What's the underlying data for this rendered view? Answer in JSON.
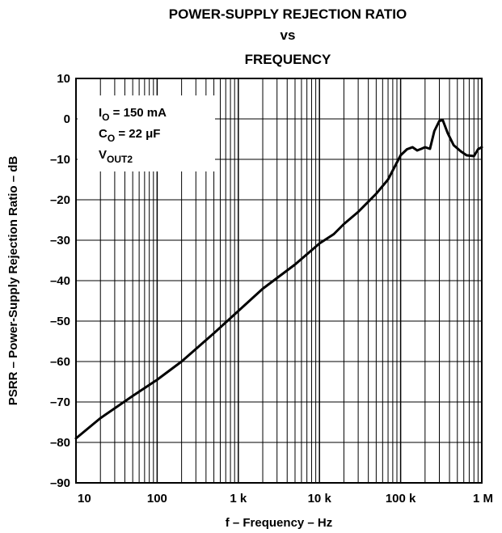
{
  "chart_data": {
    "type": "line",
    "title": [
      "POWER-SUPPLY REJECTION RATIO",
      "vs",
      "FREQUENCY"
    ],
    "xlabel": "f – Frequency – Hz",
    "ylabel": "PSRR – Power-Supply Rejection Ratio – dB",
    "x_scale": "log",
    "xlim": [
      10,
      1000000
    ],
    "ylim": [
      -90,
      10
    ],
    "x_ticks": [
      {
        "value": 10,
        "label": "10"
      },
      {
        "value": 100,
        "label": "100"
      },
      {
        "value": 1000,
        "label": "1 k"
      },
      {
        "value": 10000,
        "label": "10 k"
      },
      {
        "value": 100000,
        "label": "100 k"
      },
      {
        "value": 1000000,
        "label": "1 M"
      }
    ],
    "y_ticks": [
      {
        "value": 10,
        "label": "10"
      },
      {
        "value": 0,
        "label": "0"
      },
      {
        "value": -10,
        "label": "–10"
      },
      {
        "value": -20,
        "label": "–20"
      },
      {
        "value": -30,
        "label": "–30"
      },
      {
        "value": -40,
        "label": "–40"
      },
      {
        "value": -50,
        "label": "–50"
      },
      {
        "value": -60,
        "label": "–60"
      },
      {
        "value": -70,
        "label": "–70"
      },
      {
        "value": -80,
        "label": "–80"
      },
      {
        "value": -90,
        "label": "–90"
      }
    ],
    "grid": true,
    "conditions": [
      {
        "main": "I",
        "sub": "O",
        "rest": " = 150 mA"
      },
      {
        "main": "C",
        "sub": "O",
        "rest": " = 22 μF"
      },
      {
        "main": "V",
        "sub": "OUT2",
        "rest": ""
      }
    ],
    "series": [
      {
        "x": [
          10,
          20,
          50,
          100,
          200,
          500,
          1000,
          2000,
          5000,
          10000,
          15000,
          20000,
          30000,
          50000,
          70000,
          100000,
          120000,
          140000,
          160000,
          180000,
          200000,
          230000,
          260000,
          300000,
          330000,
          380000,
          450000,
          550000,
          650000,
          800000,
          900000,
          1000000
        ],
        "y": [
          -79,
          -74,
          -68.5,
          -64.5,
          -60,
          -53,
          -47.5,
          -42,
          -36,
          -30.8,
          -28.5,
          -26,
          -23,
          -18.5,
          -15,
          -9,
          -7.5,
          -7,
          -7.8,
          -7.4,
          -7,
          -7.4,
          -3,
          -0.5,
          -0.3,
          -3.5,
          -6.5,
          -8,
          -9,
          -9.2,
          -7.5,
          -7
        ]
      }
    ]
  }
}
